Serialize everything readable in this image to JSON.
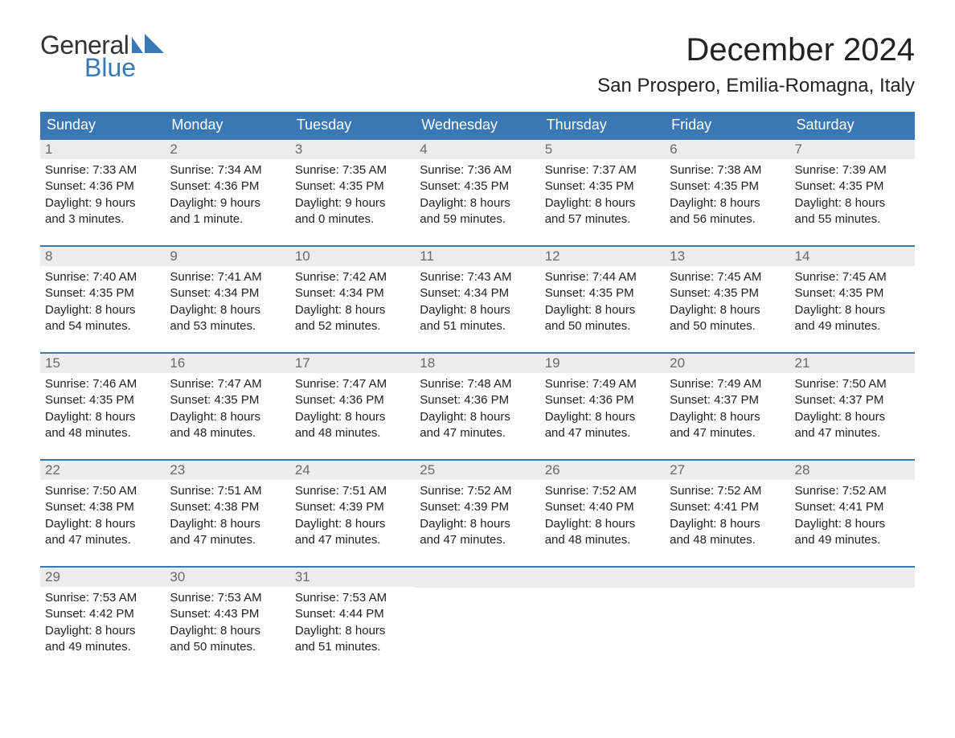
{
  "logo": {
    "general": "General",
    "blue": "Blue"
  },
  "title": "December 2024",
  "location": "San Prospero, Emilia-Romagna, Italy",
  "colors": {
    "header_bg": "#3a78b5",
    "header_text": "#ffffff",
    "daynum_bg": "#ececec",
    "daynum_text": "#6a6a6a",
    "body_text": "#222222",
    "logo_general": "#333333",
    "logo_blue": "#3a78b5",
    "border": "#3a78b5",
    "page_bg": "#ffffff"
  },
  "fonts": {
    "title_size": 40,
    "location_size": 24,
    "logo_size": 32,
    "header_size": 18,
    "daynum_size": 17,
    "body_size": 15
  },
  "day_names": [
    "Sunday",
    "Monday",
    "Tuesday",
    "Wednesday",
    "Thursday",
    "Friday",
    "Saturday"
  ],
  "weeks": [
    [
      {
        "day": "1",
        "sunrise": "Sunrise: 7:33 AM",
        "sunset": "Sunset: 4:36 PM",
        "daylight1": "Daylight: 9 hours",
        "daylight2": "and 3 minutes."
      },
      {
        "day": "2",
        "sunrise": "Sunrise: 7:34 AM",
        "sunset": "Sunset: 4:36 PM",
        "daylight1": "Daylight: 9 hours",
        "daylight2": "and 1 minute."
      },
      {
        "day": "3",
        "sunrise": "Sunrise: 7:35 AM",
        "sunset": "Sunset: 4:35 PM",
        "daylight1": "Daylight: 9 hours",
        "daylight2": "and 0 minutes."
      },
      {
        "day": "4",
        "sunrise": "Sunrise: 7:36 AM",
        "sunset": "Sunset: 4:35 PM",
        "daylight1": "Daylight: 8 hours",
        "daylight2": "and 59 minutes."
      },
      {
        "day": "5",
        "sunrise": "Sunrise: 7:37 AM",
        "sunset": "Sunset: 4:35 PM",
        "daylight1": "Daylight: 8 hours",
        "daylight2": "and 57 minutes."
      },
      {
        "day": "6",
        "sunrise": "Sunrise: 7:38 AM",
        "sunset": "Sunset: 4:35 PM",
        "daylight1": "Daylight: 8 hours",
        "daylight2": "and 56 minutes."
      },
      {
        "day": "7",
        "sunrise": "Sunrise: 7:39 AM",
        "sunset": "Sunset: 4:35 PM",
        "daylight1": "Daylight: 8 hours",
        "daylight2": "and 55 minutes."
      }
    ],
    [
      {
        "day": "8",
        "sunrise": "Sunrise: 7:40 AM",
        "sunset": "Sunset: 4:35 PM",
        "daylight1": "Daylight: 8 hours",
        "daylight2": "and 54 minutes."
      },
      {
        "day": "9",
        "sunrise": "Sunrise: 7:41 AM",
        "sunset": "Sunset: 4:34 PM",
        "daylight1": "Daylight: 8 hours",
        "daylight2": "and 53 minutes."
      },
      {
        "day": "10",
        "sunrise": "Sunrise: 7:42 AM",
        "sunset": "Sunset: 4:34 PM",
        "daylight1": "Daylight: 8 hours",
        "daylight2": "and 52 minutes."
      },
      {
        "day": "11",
        "sunrise": "Sunrise: 7:43 AM",
        "sunset": "Sunset: 4:34 PM",
        "daylight1": "Daylight: 8 hours",
        "daylight2": "and 51 minutes."
      },
      {
        "day": "12",
        "sunrise": "Sunrise: 7:44 AM",
        "sunset": "Sunset: 4:35 PM",
        "daylight1": "Daylight: 8 hours",
        "daylight2": "and 50 minutes."
      },
      {
        "day": "13",
        "sunrise": "Sunrise: 7:45 AM",
        "sunset": "Sunset: 4:35 PM",
        "daylight1": "Daylight: 8 hours",
        "daylight2": "and 50 minutes."
      },
      {
        "day": "14",
        "sunrise": "Sunrise: 7:45 AM",
        "sunset": "Sunset: 4:35 PM",
        "daylight1": "Daylight: 8 hours",
        "daylight2": "and 49 minutes."
      }
    ],
    [
      {
        "day": "15",
        "sunrise": "Sunrise: 7:46 AM",
        "sunset": "Sunset: 4:35 PM",
        "daylight1": "Daylight: 8 hours",
        "daylight2": "and 48 minutes."
      },
      {
        "day": "16",
        "sunrise": "Sunrise: 7:47 AM",
        "sunset": "Sunset: 4:35 PM",
        "daylight1": "Daylight: 8 hours",
        "daylight2": "and 48 minutes."
      },
      {
        "day": "17",
        "sunrise": "Sunrise: 7:47 AM",
        "sunset": "Sunset: 4:36 PM",
        "daylight1": "Daylight: 8 hours",
        "daylight2": "and 48 minutes."
      },
      {
        "day": "18",
        "sunrise": "Sunrise: 7:48 AM",
        "sunset": "Sunset: 4:36 PM",
        "daylight1": "Daylight: 8 hours",
        "daylight2": "and 47 minutes."
      },
      {
        "day": "19",
        "sunrise": "Sunrise: 7:49 AM",
        "sunset": "Sunset: 4:36 PM",
        "daylight1": "Daylight: 8 hours",
        "daylight2": "and 47 minutes."
      },
      {
        "day": "20",
        "sunrise": "Sunrise: 7:49 AM",
        "sunset": "Sunset: 4:37 PM",
        "daylight1": "Daylight: 8 hours",
        "daylight2": "and 47 minutes."
      },
      {
        "day": "21",
        "sunrise": "Sunrise: 7:50 AM",
        "sunset": "Sunset: 4:37 PM",
        "daylight1": "Daylight: 8 hours",
        "daylight2": "and 47 minutes."
      }
    ],
    [
      {
        "day": "22",
        "sunrise": "Sunrise: 7:50 AM",
        "sunset": "Sunset: 4:38 PM",
        "daylight1": "Daylight: 8 hours",
        "daylight2": "and 47 minutes."
      },
      {
        "day": "23",
        "sunrise": "Sunrise: 7:51 AM",
        "sunset": "Sunset: 4:38 PM",
        "daylight1": "Daylight: 8 hours",
        "daylight2": "and 47 minutes."
      },
      {
        "day": "24",
        "sunrise": "Sunrise: 7:51 AM",
        "sunset": "Sunset: 4:39 PM",
        "daylight1": "Daylight: 8 hours",
        "daylight2": "and 47 minutes."
      },
      {
        "day": "25",
        "sunrise": "Sunrise: 7:52 AM",
        "sunset": "Sunset: 4:39 PM",
        "daylight1": "Daylight: 8 hours",
        "daylight2": "and 47 minutes."
      },
      {
        "day": "26",
        "sunrise": "Sunrise: 7:52 AM",
        "sunset": "Sunset: 4:40 PM",
        "daylight1": "Daylight: 8 hours",
        "daylight2": "and 48 minutes."
      },
      {
        "day": "27",
        "sunrise": "Sunrise: 7:52 AM",
        "sunset": "Sunset: 4:41 PM",
        "daylight1": "Daylight: 8 hours",
        "daylight2": "and 48 minutes."
      },
      {
        "day": "28",
        "sunrise": "Sunrise: 7:52 AM",
        "sunset": "Sunset: 4:41 PM",
        "daylight1": "Daylight: 8 hours",
        "daylight2": "and 49 minutes."
      }
    ],
    [
      {
        "day": "29",
        "sunrise": "Sunrise: 7:53 AM",
        "sunset": "Sunset: 4:42 PM",
        "daylight1": "Daylight: 8 hours",
        "daylight2": "and 49 minutes."
      },
      {
        "day": "30",
        "sunrise": "Sunrise: 7:53 AM",
        "sunset": "Sunset: 4:43 PM",
        "daylight1": "Daylight: 8 hours",
        "daylight2": "and 50 minutes."
      },
      {
        "day": "31",
        "sunrise": "Sunrise: 7:53 AM",
        "sunset": "Sunset: 4:44 PM",
        "daylight1": "Daylight: 8 hours",
        "daylight2": "and 51 minutes."
      },
      null,
      null,
      null,
      null
    ]
  ]
}
